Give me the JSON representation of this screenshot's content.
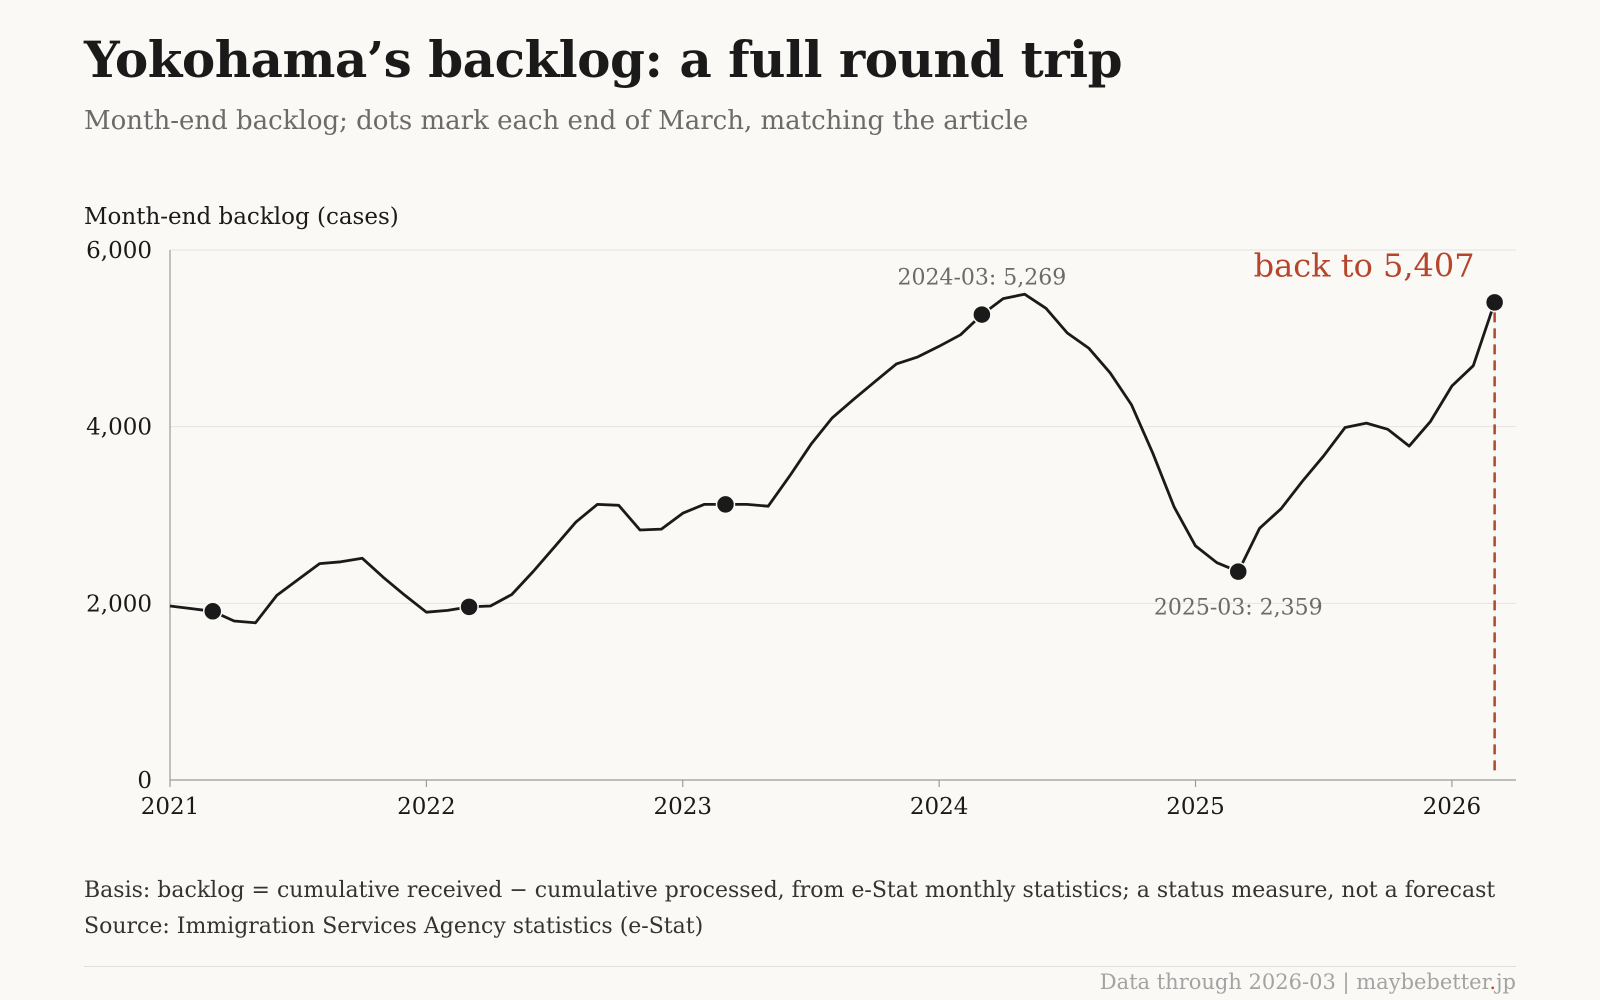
{
  "title": "Yokohama’s backlog: a full round trip",
  "subtitle": "Month-end backlog; dots mark each end of March, matching the article",
  "basis": "Basis: backlog = cumulative received − cumulative processed, from e-Stat monthly statistics; a status measure, not a forecast",
  "source": "Source: Immigration Services Agency statistics (e-Stat)",
  "footer": {
    "data_through": "Data through 2026-03",
    "separator": "|",
    "site_name": "maybebetter",
    "site_dot": ".",
    "site_tld": "jp"
  },
  "colors": {
    "line": "#1a1a1a",
    "accent": "#b5452b",
    "grid": "#e6e4df",
    "annotation": "#6b6b6b"
  },
  "chart_data": {
    "type": "line",
    "ylabel": "Month-end backlog (cases)",
    "ylim": [
      0,
      6000
    ],
    "yticks": [
      0,
      2000,
      4000,
      6000
    ],
    "ytick_labels": [
      "0",
      "2,000",
      "4,000",
      "6,000"
    ],
    "xlim": [
      "2021-01",
      "2026-04"
    ],
    "xticks": [
      "2021",
      "2022",
      "2023",
      "2024",
      "2025",
      "2026"
    ],
    "grid": "horizontal",
    "series": [
      {
        "x": [
          "2021-01",
          "2021-02",
          "2021-03",
          "2021-04",
          "2021-05",
          "2021-06",
          "2021-07",
          "2021-08",
          "2021-09",
          "2021-10",
          "2021-11",
          "2021-12",
          "2022-01",
          "2022-02",
          "2022-03",
          "2022-04",
          "2022-05",
          "2022-06",
          "2022-07",
          "2022-08",
          "2022-09",
          "2022-10",
          "2022-11",
          "2022-12",
          "2023-01",
          "2023-02",
          "2023-03",
          "2023-04",
          "2023-05",
          "2023-06",
          "2023-07",
          "2023-08",
          "2023-09",
          "2023-10",
          "2023-11",
          "2023-12",
          "2024-01",
          "2024-02",
          "2024-03",
          "2024-04",
          "2024-05",
          "2024-06",
          "2024-07",
          "2024-08",
          "2024-09",
          "2024-10",
          "2024-11",
          "2024-12",
          "2025-01",
          "2025-02",
          "2025-03",
          "2025-04",
          "2025-05",
          "2025-06",
          "2025-07",
          "2025-08",
          "2025-09",
          "2025-10",
          "2025-11",
          "2025-12",
          "2026-01",
          "2026-02",
          "2026-03"
        ],
        "values": [
          1970,
          1940,
          1910,
          1800,
          1780,
          2090,
          2270,
          2450,
          2470,
          2510,
          2290,
          2090,
          1900,
          1920,
          1960,
          1970,
          2100,
          2360,
          2640,
          2920,
          3120,
          3110,
          2830,
          2840,
          3020,
          3120,
          3120,
          3120,
          3100,
          3440,
          3800,
          4100,
          4310,
          4510,
          4710,
          4790,
          4910,
          5040,
          5269,
          5450,
          5500,
          5340,
          5060,
          4890,
          4610,
          4250,
          3700,
          3090,
          2650,
          2460,
          2359,
          2850,
          3070,
          3380,
          3670,
          3990,
          4040,
          3970,
          3780,
          4060,
          4460,
          4690,
          5407
        ]
      }
    ],
    "march_markers": [
      {
        "x": "2021-03",
        "value": 1910
      },
      {
        "x": "2022-03",
        "value": 1960
      },
      {
        "x": "2023-03",
        "value": 3120
      },
      {
        "x": "2024-03",
        "value": 5269
      },
      {
        "x": "2025-03",
        "value": 2359
      },
      {
        "x": "2026-03",
        "value": 5407
      }
    ],
    "annotations": [
      {
        "x": "2024-03",
        "value": 5269,
        "label": "2024-03: 5,269",
        "position": "above"
      },
      {
        "x": "2025-03",
        "value": 2359,
        "label": "2025-03: 2,359",
        "position": "below"
      },
      {
        "x": "2026-03",
        "value": 5407,
        "label": "back to 5,407",
        "position": "above-left",
        "highlight": true
      }
    ]
  }
}
